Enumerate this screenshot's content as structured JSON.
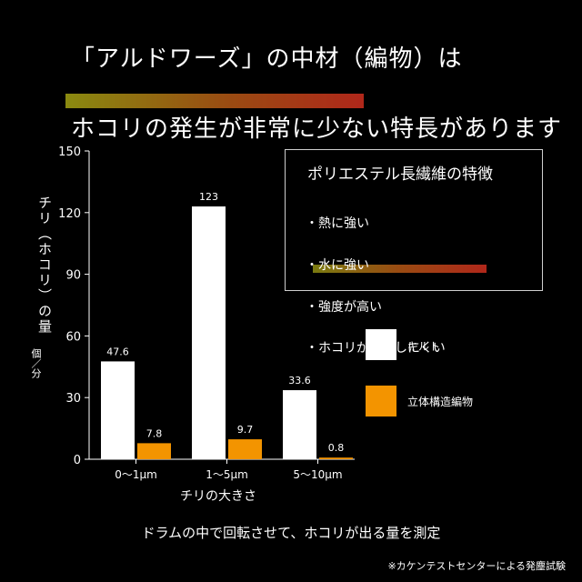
{
  "headline": {
    "line1": "「アルドワーズ」の中材（編物）は",
    "line2": "ホコリの発生が非常に少ない特長があります"
  },
  "chart_data": {
    "type": "bar",
    "categories": [
      "0～1μm",
      "1～5μm",
      "5～10μm"
    ],
    "series": [
      {
        "name": "キルト",
        "values": [
          47.6,
          123,
          33.6
        ],
        "color": "#ffffff"
      },
      {
        "name": "立体構造編物",
        "values": [
          7.8,
          9.7,
          0.8
        ],
        "color": "#f39400"
      }
    ],
    "value_labels": [
      [
        "47.6",
        "123",
        "33.6"
      ],
      [
        "7.8",
        "9.7",
        "0.8"
      ]
    ],
    "yticks": [
      "0",
      "30",
      "60",
      "90",
      "120",
      "150"
    ],
    "ylim": [
      0,
      150
    ],
    "ylabel": "チリ（ホコリ）の量",
    "yunit": "個／分",
    "xlabel": "チリの大きさ",
    "legend_placement": "right"
  },
  "info_box": {
    "title": "ポリエステル長繊維の特徴",
    "items": [
      "・熱に強い",
      "・水に強い",
      "・強度が高い",
      "・ホコリが発生しにくい"
    ]
  },
  "caption": "ドラムの中で回転させて、ホコリが出る量を測定",
  "footnote": "※カケンテストセンターによる発塵試験"
}
